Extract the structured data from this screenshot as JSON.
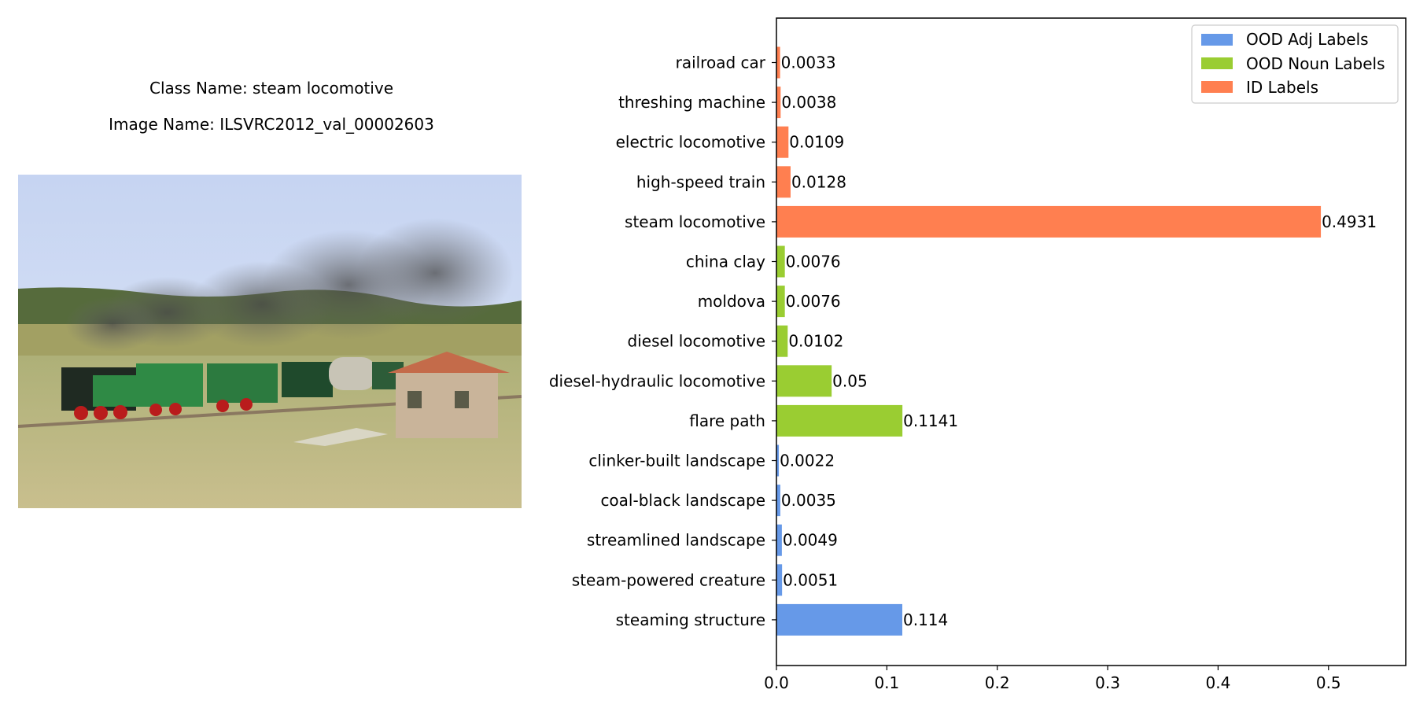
{
  "figure": {
    "class_caption": "Class Name: steam locomotive",
    "image_caption": "Image Name: ILSVRC2012_val_00002603"
  },
  "chart_data": {
    "type": "bar",
    "orientation": "horizontal",
    "title": "",
    "xlabel": "",
    "ylabel": "",
    "xlim": [
      0,
      0.57
    ],
    "xticks": [
      0.0,
      0.1,
      0.2,
      0.3,
      0.4,
      0.5
    ],
    "xtick_labels": [
      "0.0",
      "0.1",
      "0.2",
      "0.3",
      "0.4",
      "0.5"
    ],
    "grid": false,
    "legend_position": "top-right",
    "bars": [
      {
        "label": "railroad car",
        "value": 0.0033,
        "value_label": "0.0033",
        "group": "ID Labels"
      },
      {
        "label": "threshing machine",
        "value": 0.0038,
        "value_label": "0.0038",
        "group": "ID Labels"
      },
      {
        "label": "electric locomotive",
        "value": 0.0109,
        "value_label": "0.0109",
        "group": "ID Labels"
      },
      {
        "label": "high-speed train",
        "value": 0.0128,
        "value_label": "0.0128",
        "group": "ID Labels"
      },
      {
        "label": "steam locomotive",
        "value": 0.4931,
        "value_label": "0.4931",
        "group": "ID Labels"
      },
      {
        "label": "china clay",
        "value": 0.0076,
        "value_label": "0.0076",
        "group": "OOD Noun Labels"
      },
      {
        "label": "moldova",
        "value": 0.0076,
        "value_label": "0.0076",
        "group": "OOD Noun Labels"
      },
      {
        "label": "diesel locomotive",
        "value": 0.0102,
        "value_label": "0.0102",
        "group": "OOD Noun Labels"
      },
      {
        "label": "diesel-hydraulic locomotive",
        "value": 0.05,
        "value_label": "0.05",
        "group": "OOD Noun Labels"
      },
      {
        "label": "flare path",
        "value": 0.1141,
        "value_label": "0.1141",
        "group": "OOD Noun Labels"
      },
      {
        "label": "clinker-built landscape",
        "value": 0.0022,
        "value_label": "0.0022",
        "group": "OOD Adj Labels"
      },
      {
        "label": "coal-black landscape",
        "value": 0.0035,
        "value_label": "0.0035",
        "group": "OOD Adj Labels"
      },
      {
        "label": "streamlined landscape",
        "value": 0.0049,
        "value_label": "0.0049",
        "group": "OOD Adj Labels"
      },
      {
        "label": "steam-powered creature",
        "value": 0.0051,
        "value_label": "0.0051",
        "group": "OOD Adj Labels"
      },
      {
        "label": "steaming structure",
        "value": 0.114,
        "value_label": "0.114",
        "group": "OOD Adj Labels"
      }
    ],
    "legend": [
      {
        "name": "OOD Adj Labels",
        "color": "#6699e8"
      },
      {
        "name": "OOD Noun Labels",
        "color": "#9acd32"
      },
      {
        "name": "ID Labels",
        "color": "#ff7f50"
      }
    ]
  }
}
